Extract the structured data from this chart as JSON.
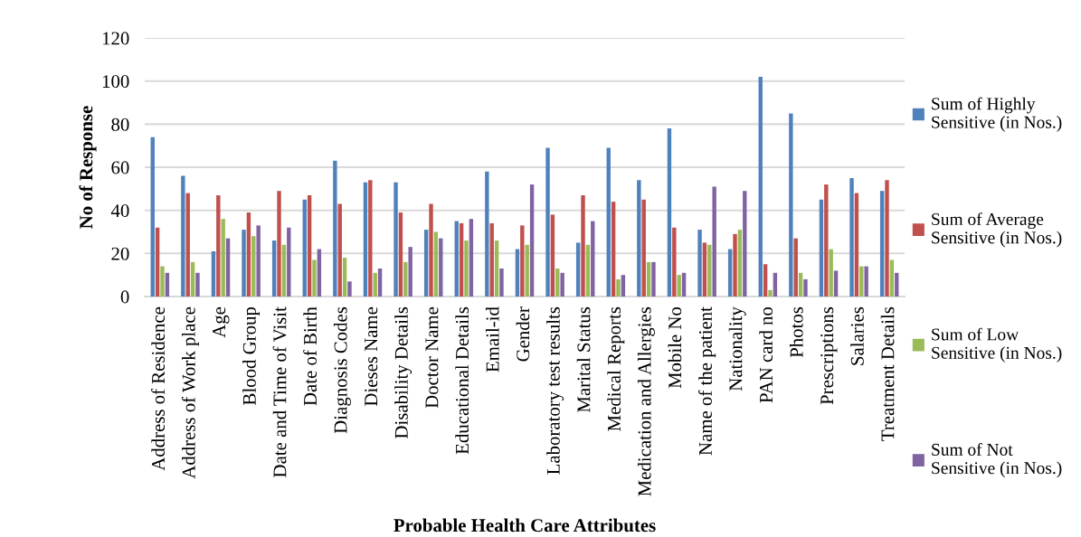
{
  "chart_data": {
    "type": "bar",
    "xlabel": "Probable Health Care Attributes",
    "ylabel": "No of Response",
    "categories": [
      "Address of Residence",
      "Address of Work place",
      "Age",
      "Blood Group",
      "Date and Time of Visit",
      "Date of Birth",
      "Diagnosis Codes",
      "Dieses Name",
      "Disability Details",
      "Doctor Name",
      "Educational Details",
      "Email-id",
      "Gender",
      "Laboratory test results",
      "Marital Status",
      "Medical Reports",
      "Medication and Allergies",
      "Mobile No",
      "Name of the patient",
      "Nationality",
      "PAN card no",
      "Photos",
      "Prescriptions",
      "Salaries",
      "Treatment Details"
    ],
    "series": [
      {
        "name": "Sum of Highly\nSensitive (in Nos.)",
        "color": "#4f81bd",
        "values": [
          74,
          56,
          21,
          31,
          26,
          45,
          63,
          53,
          53,
          31,
          35,
          58,
          22,
          69,
          25,
          69,
          54,
          78,
          31,
          22,
          102,
          85,
          45,
          55,
          49
        ]
      },
      {
        "name": "Sum of Average\nSensitive (in Nos.)",
        "color": "#c0504d",
        "values": [
          32,
          48,
          47,
          39,
          49,
          47,
          43,
          54,
          39,
          43,
          34,
          34,
          33,
          38,
          47,
          44,
          45,
          32,
          25,
          29,
          15,
          27,
          52,
          48,
          54
        ]
      },
      {
        "name": "Sum of Low\nSensitive (in Nos.)",
        "color": "#9bbb59",
        "values": [
          14,
          16,
          36,
          28,
          24,
          17,
          18,
          11,
          16,
          30,
          26,
          26,
          24,
          13,
          24,
          8,
          16,
          10,
          24,
          31,
          3,
          11,
          22,
          14,
          17
        ]
      },
      {
        "name": "Sum of Not\nSensitive (in Nos.)",
        "color": "#8064a2",
        "values": [
          11,
          11,
          27,
          33,
          32,
          22,
          7,
          13,
          23,
          27,
          36,
          13,
          52,
          11,
          35,
          10,
          16,
          11,
          51,
          49,
          11,
          8,
          12,
          14,
          11
        ]
      }
    ],
    "ylim": [
      0,
      120
    ],
    "yticks": [
      0,
      20,
      40,
      60,
      80,
      100,
      120
    ],
    "grid": "y",
    "legend": "right"
  }
}
